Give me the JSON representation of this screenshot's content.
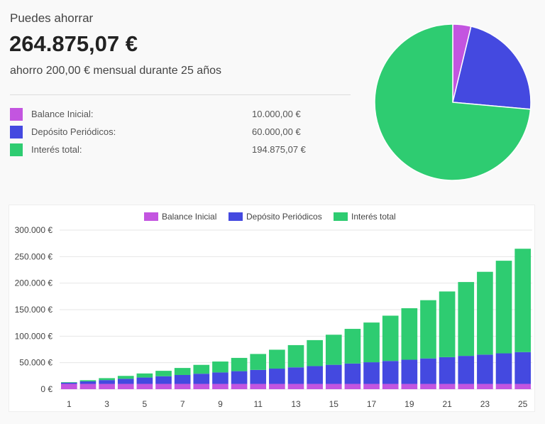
{
  "summary": {
    "title": "Puedes ahorrar",
    "amount": "264.875,07 €",
    "subtitle": "ahorro 200,00 € mensual durante 25 años"
  },
  "breakdown": [
    {
      "label": "Balance Inicial:",
      "value": "10.000,00 €",
      "color": "#c355e0",
      "amount": 10000
    },
    {
      "label": "Depósito Periódicos:",
      "value": "60.000,00 €",
      "color": "#4449e0",
      "amount": 60000
    },
    {
      "label": "Interés total:",
      "value": "194.875,07 €",
      "color": "#2ecc71",
      "amount": 194875.07
    }
  ],
  "chart_data": {
    "type": "bar",
    "stacked": true,
    "legend": "top",
    "categories": [
      1,
      2,
      3,
      4,
      5,
      6,
      7,
      8,
      9,
      10,
      11,
      12,
      13,
      14,
      15,
      16,
      17,
      18,
      19,
      20,
      21,
      22,
      23,
      24,
      25
    ],
    "x_tick_labels": [
      "1",
      "3",
      "5",
      "7",
      "9",
      "11",
      "13",
      "15",
      "17",
      "19",
      "21",
      "23",
      "25"
    ],
    "y_tick_labels": [
      "0 €",
      "50.000 €",
      "100.000 €",
      "150.000 €",
      "200.000 €",
      "250.000 €",
      "300.000 €"
    ],
    "ylim": [
      0,
      300000
    ],
    "grid": true,
    "series": [
      {
        "name": "Balance Inicial",
        "color": "#c355e0",
        "values": [
          10000,
          10000,
          10000,
          10000,
          10000,
          10000,
          10000,
          10000,
          10000,
          10000,
          10000,
          10000,
          10000,
          10000,
          10000,
          10000,
          10000,
          10000,
          10000,
          10000,
          10000,
          10000,
          10000,
          10000,
          10000
        ]
      },
      {
        "name": "Depósito Periódicos",
        "color": "#4449e0",
        "values": [
          2400,
          4800,
          7200,
          9600,
          12000,
          14400,
          16800,
          19200,
          21600,
          24000,
          26400,
          28800,
          31200,
          33600,
          36000,
          38400,
          40800,
          43200,
          45600,
          48000,
          50400,
          52800,
          55200,
          57600,
          60000
        ]
      },
      {
        "name": "Interés total",
        "color": "#2ecc71",
        "values": [
          937,
          2150,
          3664,
          5502,
          7692,
          10263,
          13246,
          16677,
          20591,
          25030,
          30036,
          35656,
          41943,
          48950,
          56739,
          65372,
          74922,
          85464,
          97079,
          109859,
          123898,
          139301,
          156182,
          174664,
          194875
        ]
      }
    ]
  }
}
